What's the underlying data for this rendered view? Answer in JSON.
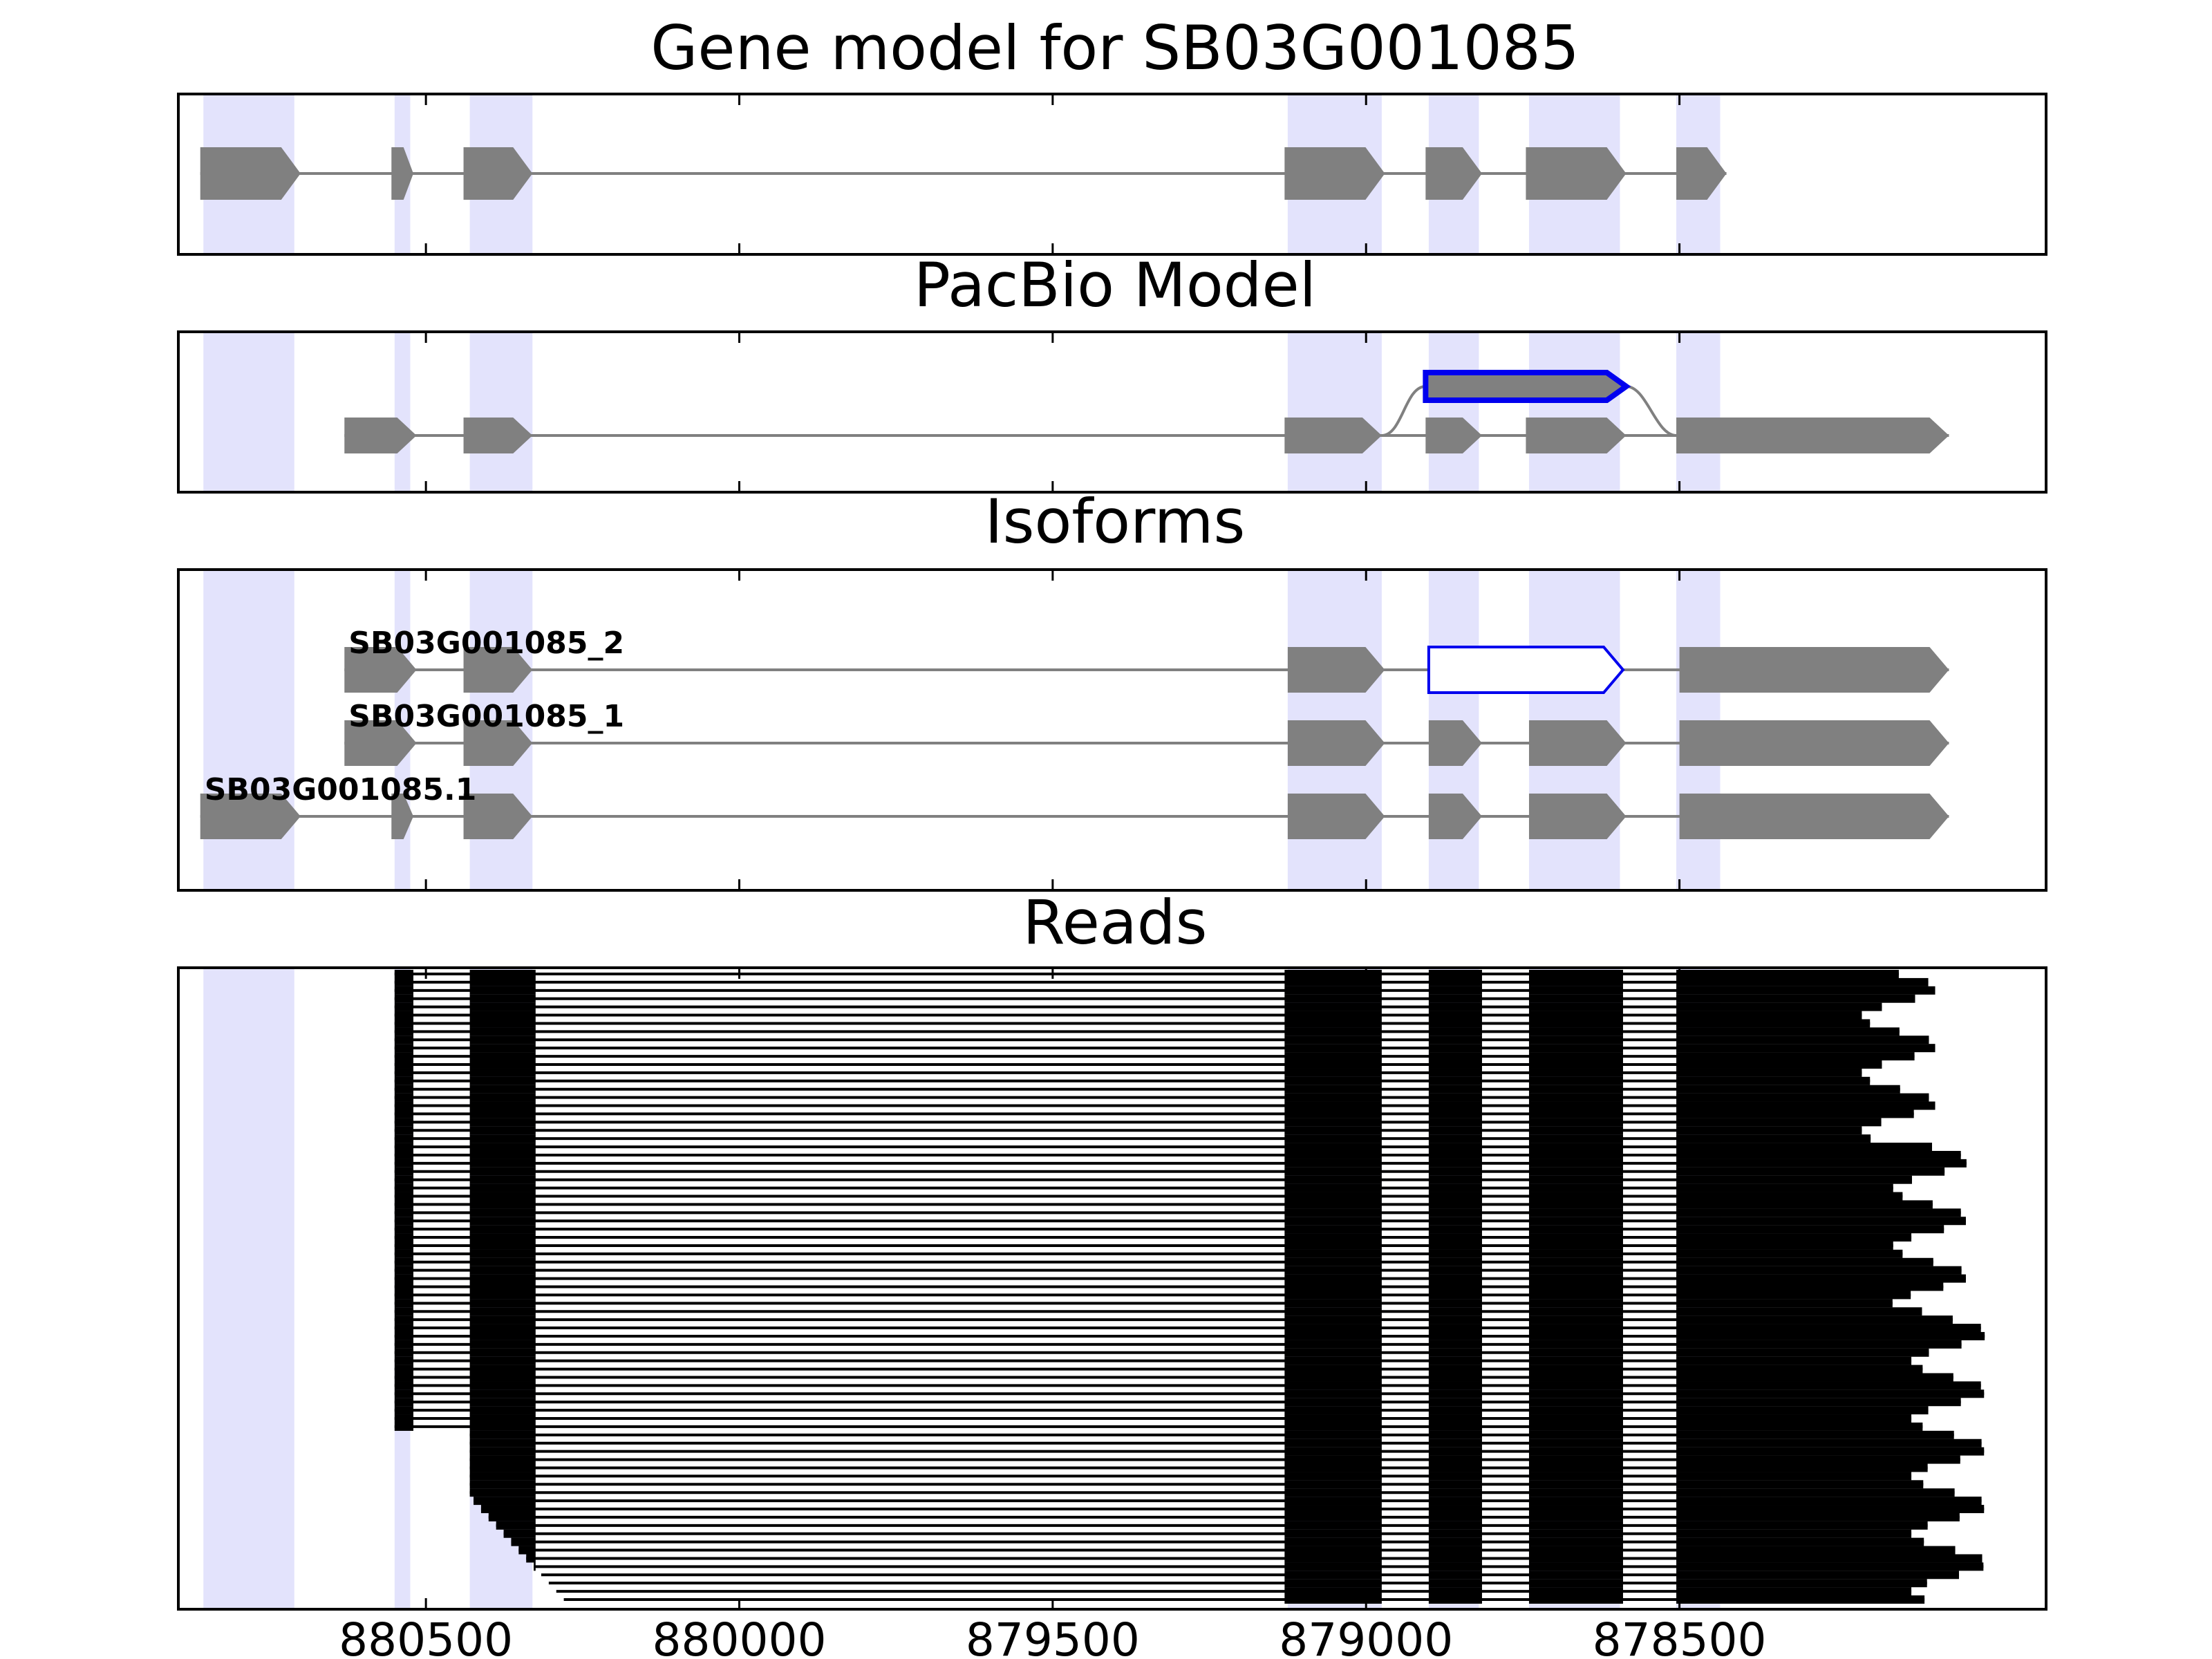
{
  "panels": {
    "gene_model": {
      "title": "Gene model for SB03G001085"
    },
    "pacbio": {
      "title": "PacBio Model"
    },
    "isoforms": {
      "title": "Isoforms"
    },
    "reads": {
      "title": "Reads"
    }
  },
  "colors": {
    "exon_fill": "#808080",
    "intron_line": "#808080",
    "highlight_edge": "#0000ee",
    "shade": "#e3e3fc",
    "read": "#000000",
    "frame": "#000000"
  },
  "chart_data": {
    "type": "gene_structure",
    "x_axis": {
      "range": [
        880895,
        877915
      ],
      "reversed": true,
      "ticks": [
        880500,
        880000,
        879500,
        879000,
        878500
      ],
      "tick_labels": [
        "880500",
        "880000",
        "879500",
        "879000",
        "878500"
      ]
    },
    "shaded_exons": [
      [
        880855,
        880710
      ],
      [
        880550,
        880525
      ],
      [
        880430,
        880330
      ],
      [
        879125,
        878975
      ],
      [
        878900,
        878820
      ],
      [
        878740,
        878595
      ],
      [
        878505,
        878435
      ]
    ],
    "gene_model": [
      {
        "start": 880860,
        "end": 880700
      },
      {
        "start": 880555,
        "end": 880520
      },
      {
        "start": 880440,
        "end": 880330
      },
      {
        "start": 879130,
        "end": 878970
      },
      {
        "start": 878905,
        "end": 878815
      },
      {
        "start": 878745,
        "end": 878585
      },
      {
        "start": 878505,
        "end": 878425
      }
    ],
    "pacbio_model": {
      "main": [
        {
          "start": 880630,
          "end": 880515
        },
        {
          "start": 880440,
          "end": 880330
        },
        {
          "start": 879130,
          "end": 878975
        },
        {
          "start": 878905,
          "end": 878815
        },
        {
          "start": 878745,
          "end": 878585
        },
        {
          "start": 878505,
          "end": 878070
        }
      ],
      "alternative_exon": {
        "start": 878905,
        "end": 878585
      }
    },
    "isoforms": [
      {
        "name": "SB03G001085_2",
        "exons": [
          {
            "start": 880630,
            "end": 880515
          },
          {
            "start": 880440,
            "end": 880330
          },
          {
            "start": 879125,
            "end": 878970
          },
          {
            "start": 878900,
            "end": 878590,
            "highlight": true
          },
          {
            "start": 878500,
            "end": 878070
          }
        ]
      },
      {
        "name": "SB03G001085_1",
        "exons": [
          {
            "start": 880630,
            "end": 880515
          },
          {
            "start": 880440,
            "end": 880330
          },
          {
            "start": 879125,
            "end": 878970
          },
          {
            "start": 878900,
            "end": 878815
          },
          {
            "start": 878740,
            "end": 878585
          },
          {
            "start": 878500,
            "end": 878070
          }
        ]
      },
      {
        "name": "SB03G001085.1",
        "exons": [
          {
            "start": 880860,
            "end": 880700
          },
          {
            "start": 880555,
            "end": 880520
          },
          {
            "start": 880440,
            "end": 880330
          },
          {
            "start": 879125,
            "end": 878970
          },
          {
            "start": 878900,
            "end": 878815
          },
          {
            "start": 878740,
            "end": 878585
          },
          {
            "start": 878500,
            "end": 878070
          }
        ]
      }
    ],
    "reads": {
      "count": 77,
      "exon_blocks": [
        [
          880550,
          880520
        ],
        [
          880430,
          880325
        ],
        [
          879130,
          878975
        ],
        [
          878900,
          878815
        ],
        [
          878740,
          878590
        ],
        [
          878505,
          878070
        ]
      ]
    }
  }
}
